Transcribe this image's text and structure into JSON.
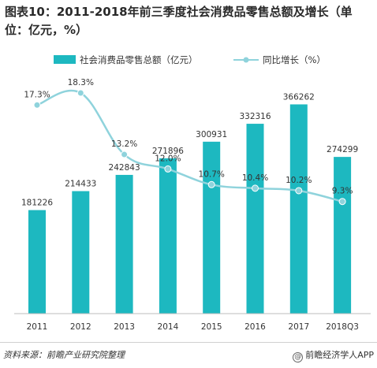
{
  "title": "图表10：2011-2018年前三季度社会消费品零售总额及增长（单位：亿元，%）",
  "source": "资料来源：前瞻产业研究院整理",
  "brand": "前瞻经济学人APP",
  "brand_mark": "@",
  "colors": {
    "bar": "#1db8c0",
    "line": "#8fd3dc",
    "text": "#333333"
  },
  "chart_data": {
    "type": "bar",
    "categories": [
      "2011",
      "2012",
      "2013",
      "2014",
      "2015",
      "2016",
      "2017",
      "2018Q3"
    ],
    "series": [
      {
        "name": "社会消费品零售总额（亿元）",
        "type": "bar",
        "axis": "left",
        "values": [
          181226,
          214433,
          242843,
          271896,
          300931,
          332316,
          366262,
          274299
        ],
        "labels": [
          "181226",
          "214433",
          "242843",
          "271896",
          "300931",
          "332316",
          "366262",
          "274299"
        ]
      },
      {
        "name": "同比增长（%）",
        "type": "line",
        "axis": "right",
        "values": [
          17.3,
          18.3,
          13.2,
          12.0,
          10.7,
          10.4,
          10.2,
          9.3
        ],
        "labels": [
          "17.3%",
          "18.3%",
          "13.2%",
          "12.0%",
          "10.7%",
          "10.4%",
          "10.2%",
          "9.3%"
        ]
      }
    ],
    "ylim_left": [
      0,
      400000
    ],
    "ylim_right": [
      0,
      20
    ],
    "grid": false,
    "legend_position": "top"
  }
}
